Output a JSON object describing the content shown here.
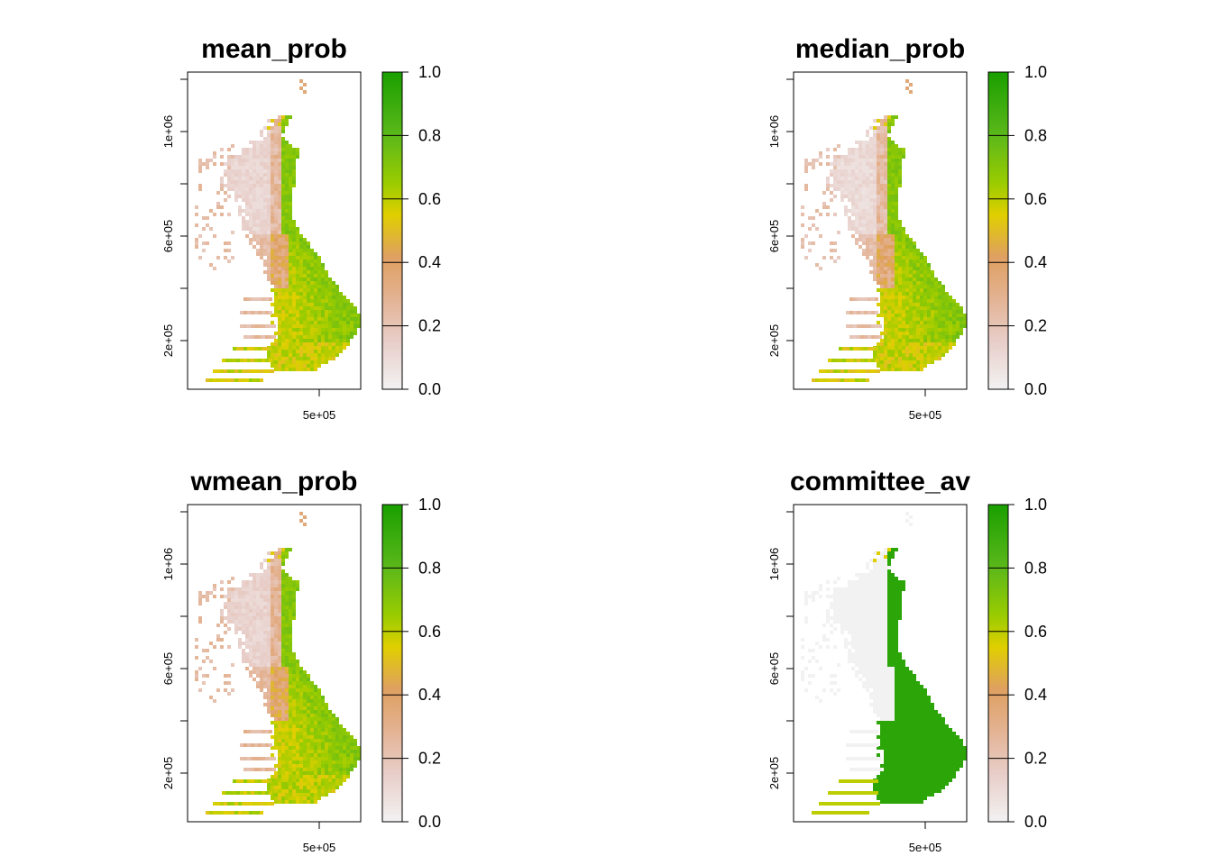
{
  "chart_data": [
    {
      "type": "heatmap",
      "title": "mean_prob",
      "xlabel": "",
      "ylabel": "",
      "x_ticks": [
        "5e+05"
      ],
      "y_ticks": [
        "2e+05",
        "6e+05",
        "1e+06"
      ],
      "legend": {
        "placement": "right",
        "ticks": [
          "0.0",
          "0.2",
          "0.4",
          "0.6",
          "0.8",
          "1.0"
        ],
        "range": [
          0,
          1
        ]
      },
      "value_profile": {
        "north_west": 0.08,
        "north_west_coast": 0.18,
        "east": 0.7,
        "south_west": 0.5
      }
    },
    {
      "type": "heatmap",
      "title": "median_prob",
      "xlabel": "",
      "ylabel": "",
      "x_ticks": [
        "5e+05"
      ],
      "y_ticks": [
        "2e+05",
        "6e+05",
        "1e+06"
      ],
      "legend": {
        "placement": "right",
        "ticks": [
          "0.0",
          "0.2",
          "0.4",
          "0.6",
          "0.8",
          "1.0"
        ],
        "range": [
          0,
          1
        ]
      },
      "value_profile": {
        "north_west": 0.06,
        "north_west_coast": 0.17,
        "east": 0.7,
        "south_west": 0.5
      }
    },
    {
      "type": "heatmap",
      "title": "wmean_prob",
      "xlabel": "",
      "ylabel": "",
      "x_ticks": [
        "5e+05"
      ],
      "y_ticks": [
        "2e+05",
        "6e+05",
        "1e+06"
      ],
      "legend": {
        "placement": "right",
        "ticks": [
          "0.0",
          "0.2",
          "0.4",
          "0.6",
          "0.8",
          "1.0"
        ],
        "range": [
          0,
          1
        ]
      },
      "value_profile": {
        "north_west": 0.09,
        "north_west_coast": 0.2,
        "east": 0.7,
        "south_west": 0.52
      }
    },
    {
      "type": "heatmap",
      "title": "committee_av",
      "xlabel": "",
      "ylabel": "",
      "x_ticks": [
        "5e+05"
      ],
      "y_ticks": [
        "2e+05",
        "6e+05",
        "1e+06"
      ],
      "legend": {
        "placement": "right",
        "ticks": [
          "0.0",
          "0.2",
          "0.4",
          "0.6",
          "0.8",
          "1.0"
        ],
        "range": [
          0,
          1
        ]
      },
      "value_profile": {
        "north_west": 0.0,
        "north_west_coast": 0.0,
        "east": 0.88,
        "south_west": 0.6
      }
    }
  ],
  "colors": {
    "scale": [
      "#f2f2f2",
      "#e6c4bd",
      "#dfa267",
      "#e0cc00",
      "#8cc800",
      "#5cb81a",
      "#1a9f00"
    ],
    "axis": "#000000"
  }
}
